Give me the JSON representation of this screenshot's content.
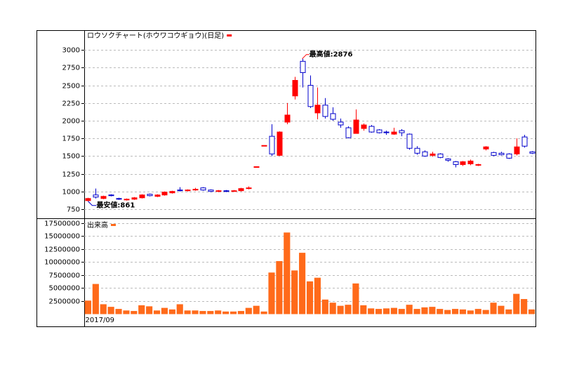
{
  "chart_data": [
    {
      "type": "candlestick",
      "title": "ロウソクチャート(ホウワコウギョウ)(日足)",
      "categories": [
        "2017/09",
        null,
        null,
        null,
        null,
        null,
        null,
        null,
        null,
        null,
        null,
        null,
        null,
        null,
        null,
        null,
        null,
        null,
        null,
        null,
        null,
        null,
        null,
        null,
        null,
        null,
        null,
        null,
        null,
        null,
        null,
        null,
        null,
        null,
        null,
        null,
        null,
        null,
        null,
        null,
        null,
        null,
        null,
        null,
        null,
        null,
        null,
        null,
        null,
        null,
        null,
        null,
        null,
        null,
        null,
        null,
        null,
        null,
        null
      ],
      "open": [
        870,
        950,
        900,
        950,
        900,
        880,
        890,
        910,
        960,
        930,
        950,
        980,
        1020,
        1010,
        1020,
        1050,
        1020,
        1000,
        1010,
        1000,
        1010,
        1040,
        1340,
        1640,
        1780,
        1510,
        1980,
        2350,
        2840,
        2500,
        2110,
        2220,
        2100,
        1980,
        1900,
        1820,
        1890,
        1920,
        1870,
        1840,
        1810,
        1860,
        1810,
        1610,
        1560,
        1510,
        1530,
        1460,
        1420,
        1380,
        1390,
        1370,
        1600,
        1550,
        1540,
        1530,
        1530,
        1770,
        1560
      ],
      "high": [
        910,
        1040,
        940,
        960,
        910,
        900,
        920,
        960,
        970,
        960,
        1000,
        1010,
        1060,
        1030,
        1050,
        1060,
        1030,
        1020,
        1020,
        1020,
        1050,
        1070,
        1350,
        1650,
        1950,
        1850,
        2250,
        2620,
        2876,
        2640,
        2470,
        2320,
        2190,
        2030,
        1920,
        2160,
        1960,
        1940,
        1880,
        1860,
        1900,
        1880,
        1820,
        1640,
        1580,
        1560,
        1540,
        1470,
        1430,
        1430,
        1450,
        1390,
        1640,
        1560,
        1560,
        1540,
        1750,
        1800,
        1570
      ],
      "low": [
        861,
        900,
        890,
        930,
        880,
        870,
        880,
        900,
        930,
        920,
        940,
        970,
        1000,
        1000,
        1010,
        1010,
        990,
        990,
        990,
        995,
        1000,
        1030,
        1340,
        1640,
        1500,
        1500,
        1950,
        2300,
        2470,
        2180,
        2020,
        2030,
        2000,
        1900,
        1750,
        1820,
        1860,
        1830,
        1820,
        1800,
        1800,
        1780,
        1590,
        1520,
        1490,
        1490,
        1470,
        1420,
        1340,
        1360,
        1370,
        1360,
        1580,
        1500,
        1510,
        1460,
        1510,
        1620,
        1530
      ],
      "close": [
        900,
        920,
        930,
        940,
        890,
        890,
        910,
        950,
        940,
        950,
        990,
        1000,
        1010,
        1020,
        1030,
        1020,
        1000,
        1010,
        1000,
        1010,
        1040,
        1050,
        1350,
        1650,
        1530,
        1840,
        2080,
        2570,
        2680,
        2200,
        2220,
        2060,
        2020,
        1940,
        1760,
        2010,
        1940,
        1840,
        1830,
        1830,
        1840,
        1830,
        1610,
        1540,
        1500,
        1530,
        1480,
        1440,
        1380,
        1420,
        1430,
        1380,
        1630,
        1510,
        1520,
        1470,
        1630,
        1640,
        1540
      ],
      "up_color": "#ff0000",
      "down_color": "#0000cc",
      "annotations": [
        "最高値:2876",
        "最安値:861"
      ],
      "ylim": [
        620,
        3270
      ],
      "yticks": [
        750,
        1000,
        1250,
        1500,
        1750,
        2000,
        2250,
        2500,
        2750,
        3000
      ],
      "grid": true
    },
    {
      "type": "bar",
      "title": "出来高",
      "values": [
        2600000,
        5800000,
        1900000,
        1400000,
        1000000,
        700000,
        600000,
        1700000,
        1500000,
        700000,
        1200000,
        900000,
        1900000,
        700000,
        700000,
        600000,
        600000,
        700000,
        500000,
        500000,
        600000,
        1200000,
        1600000,
        500000,
        8000000,
        10200000,
        15700000,
        8400000,
        11800000,
        6300000,
        7000000,
        2800000,
        2200000,
        1600000,
        1800000,
        5900000,
        1700000,
        1100000,
        1000000,
        1100000,
        1200000,
        1000000,
        1800000,
        1000000,
        1300000,
        1400000,
        1000000,
        800000,
        1000000,
        900000,
        700000,
        1000000,
        800000,
        2200000,
        1600000,
        900000,
        3900000,
        2900000,
        900000
      ],
      "color": "#ff6a1a",
      "ylim": [
        0,
        18300000
      ],
      "yticks": [
        2500000,
        5000000,
        7500000,
        10000000,
        12500000,
        15000000,
        17500000
      ],
      "grid": true
    }
  ]
}
